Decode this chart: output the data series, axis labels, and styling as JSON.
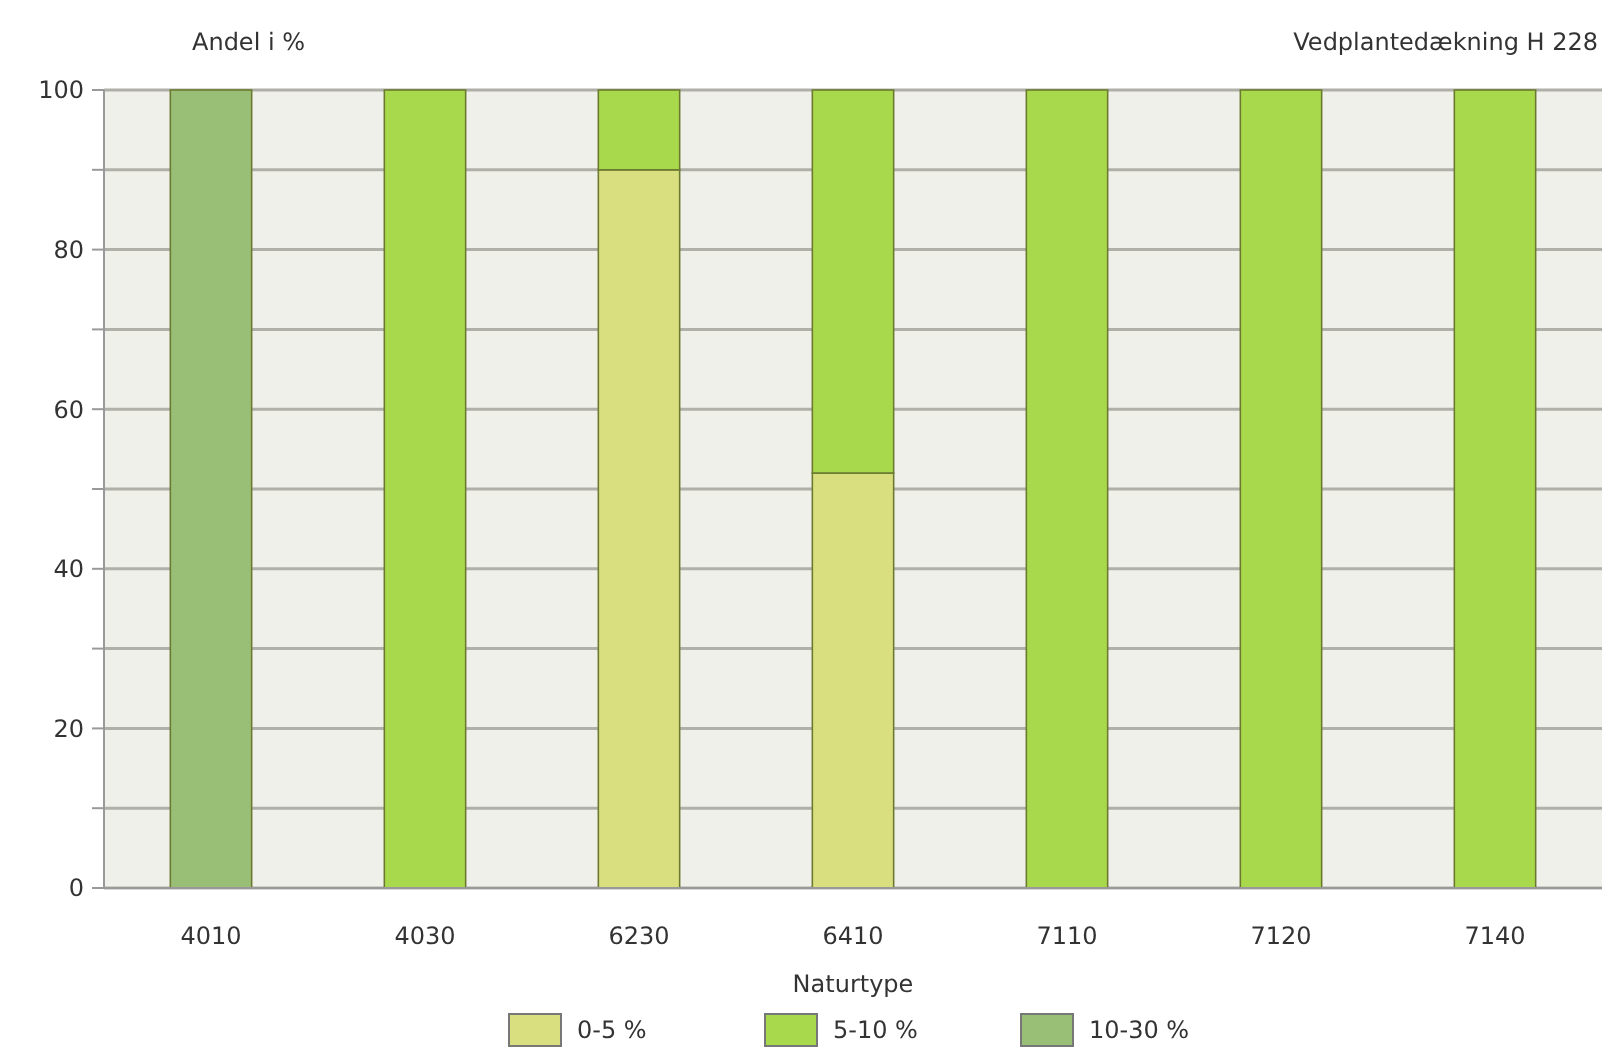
{
  "chart_data": {
    "type": "bar",
    "title": "Vedplantedækning H 228",
    "ylabel": "Andel i %",
    "xlabel": "Naturtype",
    "categories": [
      "4010",
      "4030",
      "6230",
      "6410",
      "7110",
      "7120",
      "7140"
    ],
    "stacked": true,
    "series": [
      {
        "name": "0-5 %",
        "color": "#d9df7e",
        "values": [
          0,
          0,
          90,
          52,
          0,
          0,
          0
        ]
      },
      {
        "name": "5-10 %",
        "color": "#a8d94c",
        "values": [
          0,
          100,
          10,
          48,
          100,
          100,
          100
        ]
      },
      {
        "name": "10-30 %",
        "color": "#99bf77",
        "values": [
          100,
          0,
          0,
          0,
          0,
          0,
          0
        ]
      }
    ],
    "ylim": [
      0,
      100
    ],
    "yticks": [
      0,
      {
        "value": 10,
        "label": null
      },
      20,
      {
        "value": 30,
        "label": null
      },
      40,
      {
        "value": 50,
        "label": null
      },
      60,
      {
        "value": 70,
        "label": null
      },
      80,
      {
        "value": 90,
        "label": null
      },
      100
    ],
    "grid": true,
    "legend": "bottom"
  }
}
